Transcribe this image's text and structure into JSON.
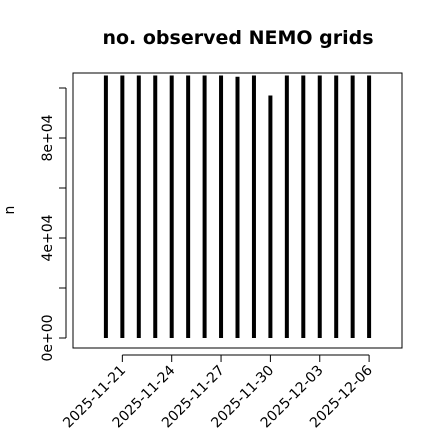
{
  "chart_data": {
    "type": "h",
    "title": "no. observed NEMO grids",
    "ylabel": "n",
    "x": [
      "2025-11-20",
      "2025-11-21",
      "2025-11-22",
      "2025-11-23",
      "2025-11-24",
      "2025-11-25",
      "2025-11-26",
      "2025-11-27",
      "2025-11-28",
      "2025-11-29",
      "2025-11-30",
      "2025-12-01",
      "2025-12-02",
      "2025-12-03",
      "2025-12-04",
      "2025-12-05",
      "2025-12-06"
    ],
    "values": [
      105000,
      105000,
      105000,
      105000,
      105000,
      105000,
      105000,
      105000,
      104500,
      105000,
      97000,
      105000,
      105000,
      105000,
      105000,
      105000,
      105000
    ],
    "color": "#000000",
    "xlim": [
      "2025-11-18",
      "2025-12-08"
    ],
    "xticks": [
      "2025-11-21",
      "2025-11-24",
      "2025-11-27",
      "2025-11-30",
      "2025-12-03",
      "2025-12-06"
    ],
    "ylim": [
      -4000,
      106000
    ],
    "yticks": [
      {
        "value": 0,
        "label": "0e+00"
      },
      {
        "value": 40000,
        "label": "4e+04"
      },
      {
        "value": 80000,
        "label": "8e+04"
      }
    ],
    "yminorticks": [
      20000,
      60000,
      100000
    ]
  }
}
